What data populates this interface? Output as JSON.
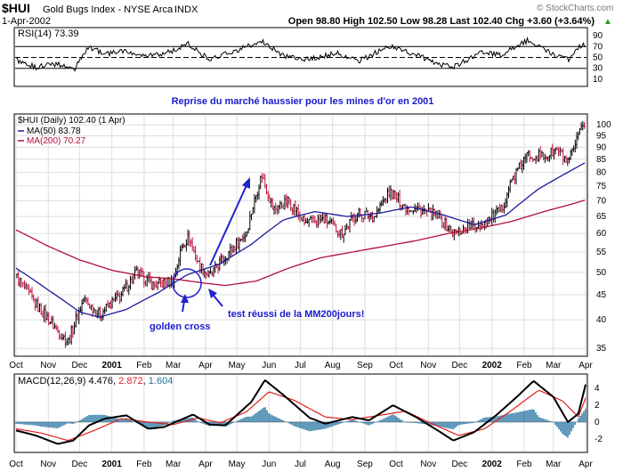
{
  "header": {
    "symbol": "$HUI",
    "name": "Gold Bugs Index - NYSE Arca",
    "exchange": "INDX",
    "date": "1-Apr-2002",
    "quote": "Open 98.80  High 102.50  Low 98.28  Last 102.40  Chg +3.60 (+3.64%)",
    "quote_arrow": "▲",
    "watermark": "© StockCharts.com"
  },
  "rsi": {
    "label": "RSI(14) 73.39",
    "ticks": [
      "90",
      "70",
      "50",
      "30",
      "10"
    ],
    "levels": [
      70,
      50,
      30
    ],
    "range": [
      0,
      100
    ]
  },
  "annotation": {
    "title": "Reprise du marché haussier pour les mines d'or en 2001",
    "golden_cross": "golden cross",
    "test": "test réussi de la MM200jours!"
  },
  "price_legend": [
    {
      "text": "$HUI (Daily) 102.40 (1 Apr)",
      "color": "#000000"
    },
    {
      "text": "MA(50) 83.78",
      "color": "#1a1a9a"
    },
    {
      "text": "MA(200) 70.27",
      "color": "#b0103a"
    }
  ],
  "price_ticks": [
    "100",
    "95",
    "90",
    "85",
    "80",
    "75",
    "70",
    "65",
    "60",
    "55",
    "50",
    "45",
    "40",
    "35"
  ],
  "months": [
    "Oct",
    "Nov",
    "Dec",
    "2001",
    "Feb",
    "Mar",
    "Apr",
    "May",
    "Jun",
    "Jul",
    "Aug",
    "Sep",
    "Oct",
    "Nov",
    "Dec",
    "2002",
    "Feb",
    "Mar",
    "Apr"
  ],
  "macd": {
    "label_prefix": "MACD(12,26,9)",
    "macd_value": "4.476",
    "signal_value": "2.872",
    "hist_value": "1.604",
    "ticks": [
      "4",
      "2",
      "0",
      "-2"
    ],
    "range": [
      -3.4,
      5.4
    ],
    "colors": {
      "macd": "#000000",
      "signal": "#e02020",
      "hist": "#1f6f9f"
    }
  },
  "chart_data": {
    "type": "line",
    "title": "$HUI Gold Bugs Index - NYSE Arca (Daily)",
    "x_range": [
      "2000-10-01",
      "2002-04-01"
    ],
    "y_scale": "log",
    "ylim": [
      34,
      103
    ],
    "series": [
      {
        "name": "$HUI",
        "points": [
          [
            "2000-10-01",
            49
          ],
          [
            "2000-10-20",
            43
          ],
          [
            "2000-11-10",
            38
          ],
          [
            "2000-11-20",
            36
          ],
          [
            "2000-12-05",
            44
          ],
          [
            "2000-12-20",
            41
          ],
          [
            "2001-01-10",
            45
          ],
          [
            "2001-01-25",
            50
          ],
          [
            "2001-02-10",
            47
          ],
          [
            "2001-03-01",
            48
          ],
          [
            "2001-03-10",
            57
          ],
          [
            "2001-03-16",
            59
          ],
          [
            "2001-03-25",
            52
          ],
          [
            "2001-04-05",
            49
          ],
          [
            "2001-04-20",
            54
          ],
          [
            "2001-05-10",
            60
          ],
          [
            "2001-05-25",
            79
          ],
          [
            "2001-06-05",
            67
          ],
          [
            "2001-06-20",
            70
          ],
          [
            "2001-07-05",
            63
          ],
          [
            "2001-07-25",
            64
          ],
          [
            "2001-08-10",
            60
          ],
          [
            "2001-08-25",
            66
          ],
          [
            "2001-09-10",
            65
          ],
          [
            "2001-09-25",
            73
          ],
          [
            "2001-10-10",
            68
          ],
          [
            "2001-10-25",
            67
          ],
          [
            "2001-11-10",
            65
          ],
          [
            "2001-11-25",
            60
          ],
          [
            "2001-12-10",
            62
          ],
          [
            "2001-12-25",
            63
          ],
          [
            "2002-01-10",
            67
          ],
          [
            "2002-01-20",
            77
          ],
          [
            "2002-02-05",
            87
          ],
          [
            "2002-02-20",
            86
          ],
          [
            "2002-03-05",
            89
          ],
          [
            "2002-03-15",
            83
          ],
          [
            "2002-03-25",
            94
          ],
          [
            "2002-04-01",
            102.4
          ]
        ]
      },
      {
        "name": "MA(50)",
        "points": [
          [
            "2000-10-01",
            51
          ],
          [
            "2000-11-01",
            46
          ],
          [
            "2000-12-01",
            41.5
          ],
          [
            "2000-12-20",
            40.5
          ],
          [
            "2001-01-15",
            42
          ],
          [
            "2001-02-15",
            45.5
          ],
          [
            "2001-03-15",
            49.5
          ],
          [
            "2001-04-15",
            52
          ],
          [
            "2001-05-15",
            57
          ],
          [
            "2001-06-15",
            64
          ],
          [
            "2001-07-15",
            66.5
          ],
          [
            "2001-08-15",
            65
          ],
          [
            "2001-09-15",
            66
          ],
          [
            "2001-10-15",
            68
          ],
          [
            "2001-11-15",
            65.5
          ],
          [
            "2001-12-15",
            62.5
          ],
          [
            "2002-01-15",
            65.5
          ],
          [
            "2002-02-15",
            74
          ],
          [
            "2002-03-15",
            80
          ],
          [
            "2002-04-01",
            83.78
          ]
        ]
      },
      {
        "name": "MA(200)",
        "points": [
          [
            "2000-10-01",
            61
          ],
          [
            "2000-11-01",
            56.5
          ],
          [
            "2000-12-01",
            53
          ],
          [
            "2001-01-01",
            50.5
          ],
          [
            "2001-02-01",
            49
          ],
          [
            "2001-03-01",
            48.5
          ],
          [
            "2001-04-01",
            47.5
          ],
          [
            "2001-04-20",
            47
          ],
          [
            "2001-05-20",
            48
          ],
          [
            "2001-06-20",
            51
          ],
          [
            "2001-07-20",
            53.5
          ],
          [
            "2001-08-20",
            55
          ],
          [
            "2001-09-20",
            56.5
          ],
          [
            "2001-10-20",
            58
          ],
          [
            "2001-11-20",
            60
          ],
          [
            "2001-12-20",
            61.5
          ],
          [
            "2002-01-20",
            63.5
          ],
          [
            "2002-02-20",
            66.5
          ],
          [
            "2002-03-20",
            69
          ],
          [
            "2002-04-01",
            70.27
          ]
        ]
      },
      {
        "name": "RSI(14)",
        "points": [
          [
            "2000-10-01",
            45
          ],
          [
            "2000-10-20",
            32
          ],
          [
            "2000-11-10",
            38
          ],
          [
            "2000-11-25",
            26
          ],
          [
            "2000-12-10",
            70
          ],
          [
            "2000-12-25",
            56
          ],
          [
            "2001-01-15",
            62
          ],
          [
            "2001-02-10",
            52
          ],
          [
            "2001-03-05",
            65
          ],
          [
            "2001-03-15",
            75
          ],
          [
            "2001-04-05",
            45
          ],
          [
            "2001-05-05",
            66
          ],
          [
            "2001-05-25",
            80
          ],
          [
            "2001-06-15",
            52
          ],
          [
            "2001-07-10",
            46
          ],
          [
            "2001-08-05",
            58
          ],
          [
            "2001-08-25",
            42
          ],
          [
            "2001-09-15",
            62
          ],
          [
            "2001-09-28",
            70
          ],
          [
            "2001-10-20",
            55
          ],
          [
            "2001-11-10",
            38
          ],
          [
            "2001-11-25",
            32
          ],
          [
            "2001-12-20",
            58
          ],
          [
            "2002-01-10",
            55
          ],
          [
            "2002-01-25",
            72
          ],
          [
            "2002-02-05",
            82
          ],
          [
            "2002-02-25",
            60
          ],
          [
            "2002-03-15",
            45
          ],
          [
            "2002-03-25",
            68
          ],
          [
            "2002-04-01",
            73.39
          ]
        ]
      },
      {
        "name": "MACD",
        "points": [
          [
            "2000-10-01",
            -1.0
          ],
          [
            "2000-10-20",
            -1.6
          ],
          [
            "2000-11-10",
            -2.6
          ],
          [
            "2000-11-25",
            -2.2
          ],
          [
            "2000-12-10",
            -0.4
          ],
          [
            "2000-12-25",
            0.4
          ],
          [
            "2001-01-15",
            0.8
          ],
          [
            "2001-02-05",
            -0.8
          ],
          [
            "2001-02-20",
            -0.6
          ],
          [
            "2001-03-20",
            0.9
          ],
          [
            "2001-04-05",
            -0.3
          ],
          [
            "2001-04-20",
            -0.4
          ],
          [
            "2001-05-15",
            2.4
          ],
          [
            "2001-05-28",
            5.0
          ],
          [
            "2001-06-15",
            3.2
          ],
          [
            "2001-07-10",
            0.5
          ],
          [
            "2001-07-25",
            -0.2
          ],
          [
            "2001-08-20",
            0.6
          ],
          [
            "2001-09-05",
            0.2
          ],
          [
            "2001-09-28",
            2.0
          ],
          [
            "2001-10-20",
            0.6
          ],
          [
            "2001-11-10",
            -1.0
          ],
          [
            "2001-11-25",
            -2.2
          ],
          [
            "2001-12-15",
            -1.2
          ],
          [
            "2002-01-05",
            0.8
          ],
          [
            "2002-01-25",
            3.0
          ],
          [
            "2002-02-10",
            4.9
          ],
          [
            "2002-03-01",
            3.0
          ],
          [
            "2002-03-15",
            0.0
          ],
          [
            "2002-03-25",
            1.0
          ],
          [
            "2002-04-01",
            4.476
          ]
        ]
      },
      {
        "name": "Signal",
        "points": [
          [
            "2000-10-01",
            -0.8
          ],
          [
            "2000-10-25",
            -1.3
          ],
          [
            "2000-11-20",
            -2.2
          ],
          [
            "2000-12-15",
            -1.0
          ],
          [
            "2001-01-10",
            0.4
          ],
          [
            "2001-02-05",
            0.0
          ],
          [
            "2001-03-01",
            -0.3
          ],
          [
            "2001-03-25",
            0.5
          ],
          [
            "2001-04-15",
            -0.1
          ],
          [
            "2001-05-10",
            1.2
          ],
          [
            "2001-06-01",
            3.6
          ],
          [
            "2001-06-25",
            2.6
          ],
          [
            "2001-07-25",
            0.6
          ],
          [
            "2001-08-20",
            0.3
          ],
          [
            "2001-09-15",
            0.8
          ],
          [
            "2001-10-10",
            1.3
          ],
          [
            "2001-11-01",
            0.0
          ],
          [
            "2001-11-30",
            -1.6
          ],
          [
            "2001-12-25",
            -0.8
          ],
          [
            "2002-01-20",
            1.4
          ],
          [
            "2002-02-15",
            3.8
          ],
          [
            "2002-03-10",
            2.5
          ],
          [
            "2002-03-25",
            0.6
          ],
          [
            "2002-04-01",
            2.872
          ]
        ]
      }
    ]
  }
}
